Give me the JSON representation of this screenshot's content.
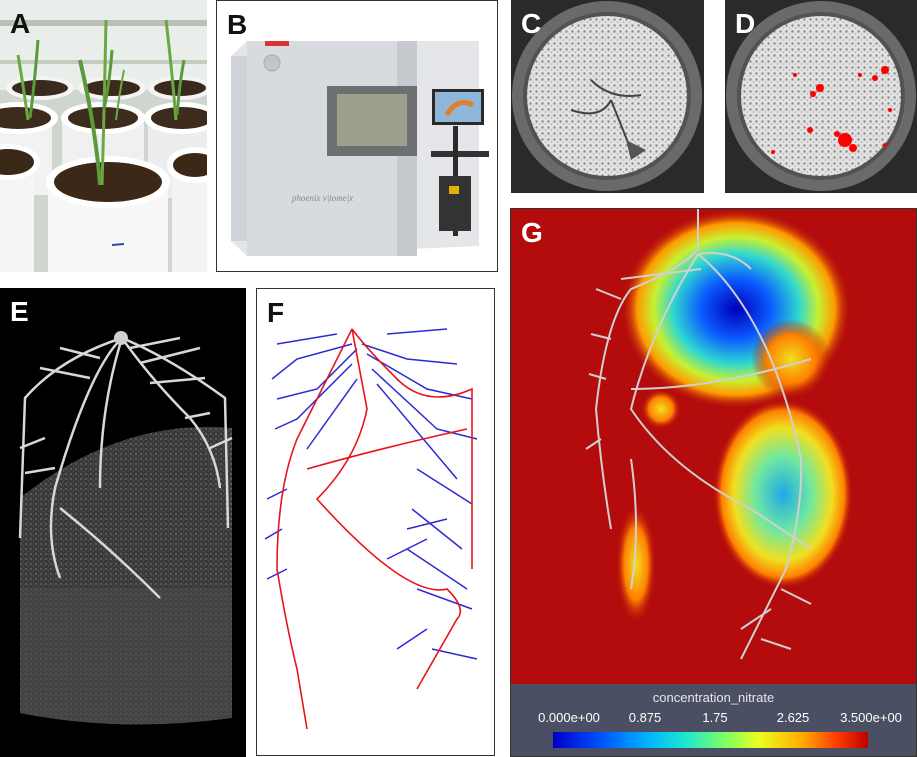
{
  "panels": {
    "a": {
      "label": "A"
    },
    "b": {
      "label": "B"
    },
    "c": {
      "label": "C"
    },
    "d": {
      "label": "D"
    },
    "e": {
      "label": "E"
    },
    "f": {
      "label": "F"
    },
    "g": {
      "label": "G"
    }
  },
  "colorbar": {
    "title": "concentration_nitrate",
    "ticks": [
      "0.000e+00",
      "0.875",
      "1.75",
      "2.625",
      "3.500e+00"
    ]
  },
  "colors": {
    "taproot_red": "#e8141c",
    "lateral_blue": "#2a2ad6",
    "field_red": "#b40c0c",
    "mask_red": "#ff0000"
  }
}
